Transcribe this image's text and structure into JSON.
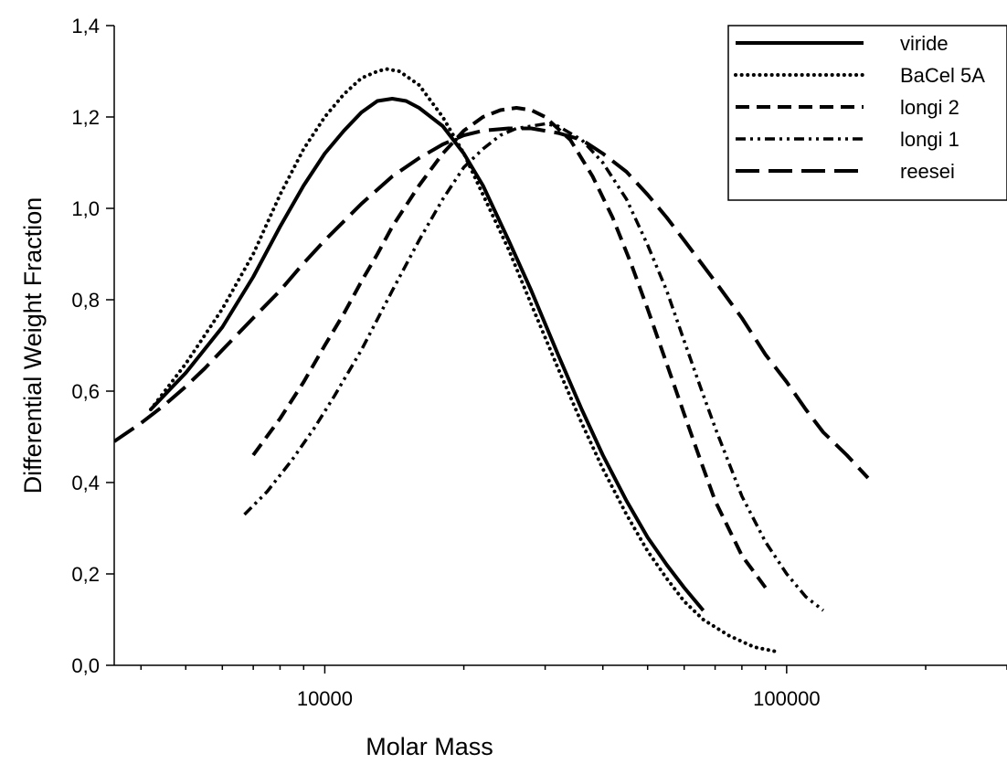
{
  "chart_data": {
    "type": "line",
    "title": "",
    "xlabel": "Molar Mass",
    "ylabel": "Differential Weight Fraction",
    "x_scale": "log",
    "xlim": [
      3500,
      300000
    ],
    "ylim": [
      0,
      1.4
    ],
    "x_ticks": [
      {
        "value": 10000,
        "label": "10000"
      },
      {
        "value": 100000,
        "label": "100000"
      }
    ],
    "y_ticks": [
      {
        "value": 0.0,
        "label": "0,0"
      },
      {
        "value": 0.2,
        "label": "0,2"
      },
      {
        "value": 0.4,
        "label": "0,4"
      },
      {
        "value": 0.6,
        "label": "0,6"
      },
      {
        "value": 0.8,
        "label": "0,8"
      },
      {
        "value": 1.0,
        "label": "1,0"
      },
      {
        "value": 1.2,
        "label": "1,2"
      },
      {
        "value": 1.4,
        "label": "1,4"
      }
    ],
    "grid": false,
    "legend_position": "top-right",
    "series": [
      {
        "name": "viride",
        "style": "solid",
        "color": "#000000",
        "points": [
          [
            4200,
            0.56
          ],
          [
            5000,
            0.64
          ],
          [
            6000,
            0.74
          ],
          [
            7000,
            0.85
          ],
          [
            8000,
            0.96
          ],
          [
            9000,
            1.05
          ],
          [
            10000,
            1.12
          ],
          [
            11000,
            1.17
          ],
          [
            12000,
            1.21
          ],
          [
            13000,
            1.235
          ],
          [
            14000,
            1.24
          ],
          [
            15000,
            1.235
          ],
          [
            16000,
            1.22
          ],
          [
            18000,
            1.18
          ],
          [
            20000,
            1.12
          ],
          [
            22000,
            1.05
          ],
          [
            25000,
            0.93
          ],
          [
            28000,
            0.82
          ],
          [
            32000,
            0.68
          ],
          [
            36000,
            0.56
          ],
          [
            40000,
            0.46
          ],
          [
            45000,
            0.36
          ],
          [
            50000,
            0.28
          ],
          [
            55000,
            0.22
          ],
          [
            60000,
            0.17
          ],
          [
            66000,
            0.12
          ]
        ]
      },
      {
        "name": "BaCel 5A",
        "style": "dotted",
        "color": "#000000",
        "points": [
          [
            4200,
            0.56
          ],
          [
            5000,
            0.66
          ],
          [
            6000,
            0.78
          ],
          [
            7000,
            0.9
          ],
          [
            8000,
            1.03
          ],
          [
            9000,
            1.13
          ],
          [
            10000,
            1.2
          ],
          [
            11000,
            1.25
          ],
          [
            12000,
            1.285
          ],
          [
            13000,
            1.3
          ],
          [
            13600,
            1.305
          ],
          [
            14500,
            1.3
          ],
          [
            16000,
            1.27
          ],
          [
            18000,
            1.2
          ],
          [
            20000,
            1.12
          ],
          [
            22000,
            1.03
          ],
          [
            25000,
            0.91
          ],
          [
            28000,
            0.79
          ],
          [
            32000,
            0.65
          ],
          [
            36000,
            0.53
          ],
          [
            40000,
            0.43
          ],
          [
            45000,
            0.33
          ],
          [
            50000,
            0.25
          ],
          [
            55000,
            0.19
          ],
          [
            60000,
            0.14
          ],
          [
            66000,
            0.1
          ],
          [
            75000,
            0.065
          ],
          [
            85000,
            0.04
          ],
          [
            95000,
            0.03
          ]
        ]
      },
      {
        "name": "longi 2",
        "style": "dashed",
        "color": "#000000",
        "points": [
          [
            7000,
            0.46
          ],
          [
            8000,
            0.54
          ],
          [
            9000,
            0.62
          ],
          [
            10000,
            0.7
          ],
          [
            11000,
            0.77
          ],
          [
            12000,
            0.84
          ],
          [
            13000,
            0.9
          ],
          [
            14000,
            0.96
          ],
          [
            16000,
            1.05
          ],
          [
            18000,
            1.12
          ],
          [
            20000,
            1.17
          ],
          [
            22000,
            1.2
          ],
          [
            24000,
            1.215
          ],
          [
            26000,
            1.22
          ],
          [
            28000,
            1.215
          ],
          [
            30000,
            1.2
          ],
          [
            34000,
            1.15
          ],
          [
            38000,
            1.07
          ],
          [
            42000,
            0.98
          ],
          [
            46000,
            0.88
          ],
          [
            50000,
            0.78
          ],
          [
            55000,
            0.66
          ],
          [
            60000,
            0.55
          ],
          [
            65000,
            0.45
          ],
          [
            70000,
            0.36
          ],
          [
            80000,
            0.24
          ],
          [
            90000,
            0.17
          ]
        ]
      },
      {
        "name": "longi 1",
        "style": "dashdotdot",
        "color": "#000000",
        "points": [
          [
            6700,
            0.33
          ],
          [
            7500,
            0.38
          ],
          [
            8500,
            0.45
          ],
          [
            9500,
            0.52
          ],
          [
            10500,
            0.59
          ],
          [
            12000,
            0.69
          ],
          [
            14000,
            0.82
          ],
          [
            16000,
            0.93
          ],
          [
            18000,
            1.02
          ],
          [
            20000,
            1.09
          ],
          [
            22000,
            1.13
          ],
          [
            24000,
            1.16
          ],
          [
            26000,
            1.175
          ],
          [
            28000,
            1.18
          ],
          [
            30000,
            1.185
          ],
          [
            32000,
            1.18
          ],
          [
            36000,
            1.15
          ],
          [
            40000,
            1.1
          ],
          [
            45000,
            1.02
          ],
          [
            50000,
            0.92
          ],
          [
            55000,
            0.82
          ],
          [
            60000,
            0.71
          ],
          [
            65000,
            0.61
          ],
          [
            70000,
            0.52
          ],
          [
            80000,
            0.37
          ],
          [
            90000,
            0.27
          ],
          [
            100000,
            0.2
          ],
          [
            110000,
            0.15
          ],
          [
            120000,
            0.12
          ]
        ]
      },
      {
        "name": "reesei",
        "style": "longdash",
        "color": "#000000",
        "points": [
          [
            3500,
            0.49
          ],
          [
            4000,
            0.53
          ],
          [
            4500,
            0.57
          ],
          [
            5000,
            0.61
          ],
          [
            5500,
            0.65
          ],
          [
            6000,
            0.69
          ],
          [
            7000,
            0.76
          ],
          [
            8000,
            0.82
          ],
          [
            9000,
            0.88
          ],
          [
            10000,
            0.93
          ],
          [
            12000,
            1.01
          ],
          [
            14000,
            1.07
          ],
          [
            16000,
            1.11
          ],
          [
            18000,
            1.14
          ],
          [
            20000,
            1.16
          ],
          [
            22000,
            1.17
          ],
          [
            25000,
            1.175
          ],
          [
            28000,
            1.175
          ],
          [
            32000,
            1.165
          ],
          [
            36000,
            1.15
          ],
          [
            40000,
            1.12
          ],
          [
            45000,
            1.08
          ],
          [
            50000,
            1.03
          ],
          [
            55000,
            0.98
          ],
          [
            60000,
            0.93
          ],
          [
            70000,
            0.84
          ],
          [
            80000,
            0.76
          ],
          [
            90000,
            0.68
          ],
          [
            100000,
            0.62
          ],
          [
            110000,
            0.56
          ],
          [
            120000,
            0.51
          ],
          [
            135000,
            0.46
          ],
          [
            150000,
            0.41
          ]
        ]
      }
    ]
  }
}
